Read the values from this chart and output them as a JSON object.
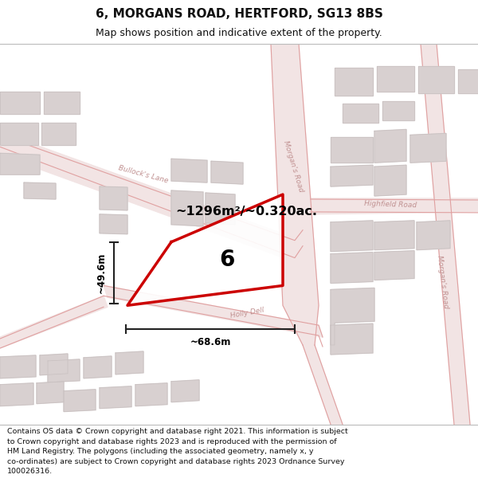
{
  "title": "6, MORGANS ROAD, HERTFORD, SG13 8BS",
  "subtitle": "Map shows position and indicative extent of the property.",
  "footer": "Contains OS data © Crown copyright and database right 2021. This information is subject\nto Crown copyright and database rights 2023 and is reproduced with the permission of\nHM Land Registry. The polygons (including the associated geometry, namely x, y\nco-ordinates) are subject to Crown copyright and database rights 2023 Ordnance Survey\n100026316.",
  "area_label": "~1296m²/~0.320ac.",
  "width_label": "~68.6m",
  "height_label": "~49.6m",
  "property_number": "6",
  "map_bg": "#faf7f7",
  "road_fill": "#f2e4e4",
  "building_fill": "#d8d0d0",
  "building_edge": "#c8c0c0",
  "highlight_color": "#cc0000",
  "road_edge": "#e0a0a0",
  "road_label_color": "#c09090",
  "dim_color": "#222222",
  "text_color": "#111111",
  "title_fontsize": 11,
  "subtitle_fontsize": 9,
  "footer_fontsize": 6.8
}
